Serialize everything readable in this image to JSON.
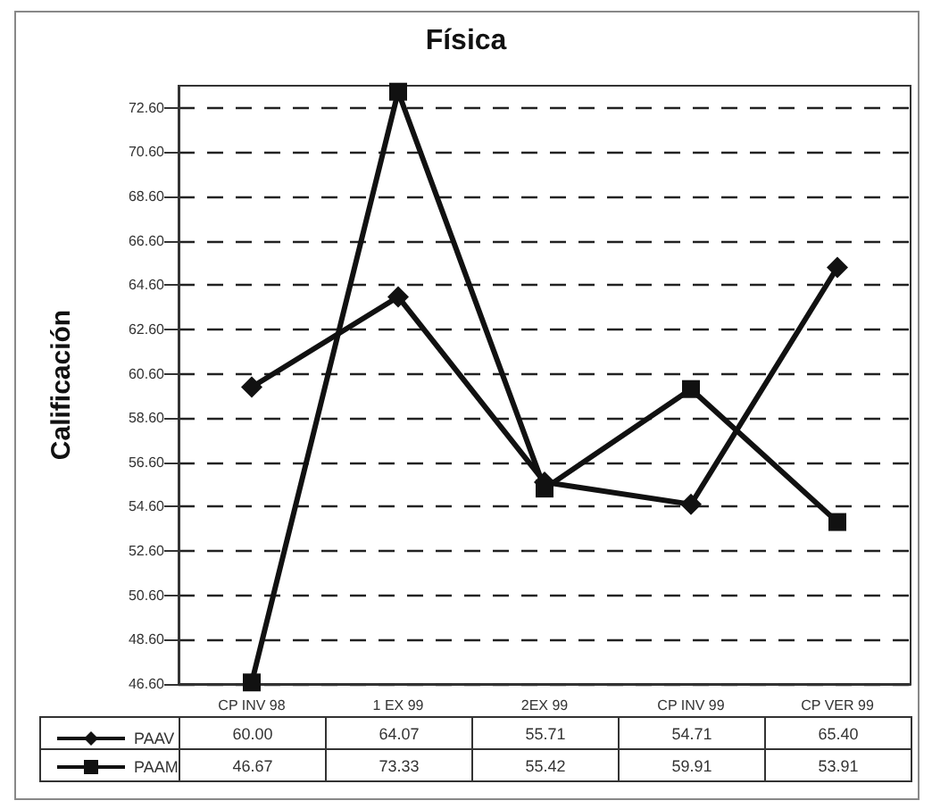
{
  "chart_data": {
    "type": "line",
    "title": "Física",
    "ylabel": "Calificación",
    "categories": [
      "CP INV 98",
      "1 EX 99",
      "2EX 99",
      "CP INV 99",
      "CP VER 99"
    ],
    "series": [
      {
        "name": "PAAV",
        "color": "#111111",
        "marker": "diamond",
        "values": [
          60.0,
          64.07,
          55.71,
          54.71,
          65.4
        ],
        "value_labels": [
          "60.00",
          "64.07",
          "55.71",
          "54.71",
          "65.40"
        ]
      },
      {
        "name": "PAAM",
        "color": "#111111",
        "marker": "square",
        "values": [
          46.67,
          73.33,
          55.42,
          59.91,
          53.91
        ],
        "value_labels": [
          "46.67",
          "73.33",
          "55.42",
          "59.91",
          "53.91"
        ]
      }
    ],
    "ylim": [
      46.6,
      73.6
    ],
    "yticks": [
      {
        "value": 46.6,
        "label": "46.60"
      },
      {
        "value": 48.6,
        "label": "48.60"
      },
      {
        "value": 50.6,
        "label": "50.60"
      },
      {
        "value": 52.6,
        "label": "52.60"
      },
      {
        "value": 54.6,
        "label": "54.60"
      },
      {
        "value": 56.6,
        "label": "56.60"
      },
      {
        "value": 58.6,
        "label": "58.60"
      },
      {
        "value": 60.6,
        "label": "60.60"
      },
      {
        "value": 62.6,
        "label": "62.60"
      },
      {
        "value": 64.6,
        "label": "64.60"
      },
      {
        "value": 66.6,
        "label": "66.60"
      },
      {
        "value": 68.6,
        "label": "68.60"
      },
      {
        "value": 70.6,
        "label": "70.60"
      },
      {
        "value": 72.6,
        "label": "72.60"
      }
    ],
    "grid": "y",
    "legend": "bottom left",
    "line_style": "solid"
  }
}
